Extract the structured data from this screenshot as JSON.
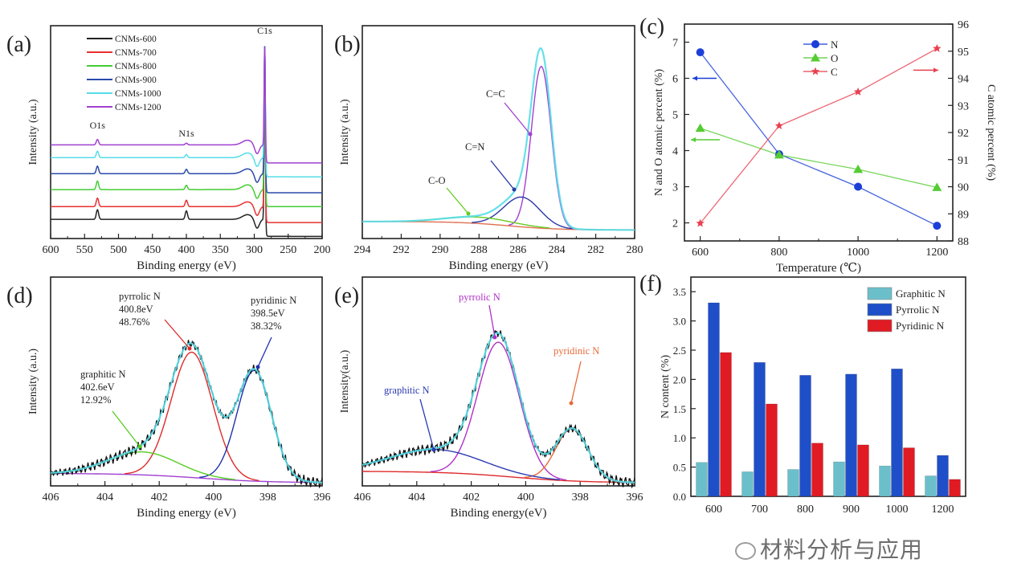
{
  "chart_data": [
    {
      "panel": "(a)",
      "type": "line",
      "xlabel": "Binding energy (eV)",
      "ylabel": "Intensity (a.u.)",
      "xlim": [
        600,
        200
      ],
      "ylim": [
        0,
        100
      ],
      "xticks": [
        600,
        550,
        500,
        450,
        400,
        350,
        300,
        250,
        200
      ],
      "legend": "top-left",
      "peak_labels": [
        {
          "text": "O1s",
          "x": 531
        },
        {
          "text": "N1s",
          "x": 400
        },
        {
          "text": "C1s",
          "x": 284.6
        }
      ],
      "series": [
        {
          "name": "CNMs-600",
          "color": "#222222",
          "level_before": 9,
          "level_after": 1,
          "peaks": [
            {
              "center": 531,
              "height": 4.5,
              "fwhm": 4
            },
            {
              "center": 400,
              "height": 4,
              "fwhm": 4
            },
            {
              "center": 284.6,
              "height": 82,
              "fwhm": 2
            }
          ]
        },
        {
          "name": "CNMs-700",
          "color": "#e83030",
          "level_before": 15,
          "level_after": 7.5,
          "peaks": [
            {
              "center": 531,
              "height": 4,
              "fwhm": 4
            },
            {
              "center": 400,
              "height": 3,
              "fwhm": 4
            },
            {
              "center": 284.6,
              "height": 76,
              "fwhm": 2
            }
          ]
        },
        {
          "name": "CNMs-800",
          "color": "#44cc33",
          "level_before": 23,
          "level_after": 15,
          "peaks": [
            {
              "center": 531,
              "height": 4,
              "fwhm": 4
            },
            {
              "center": 400,
              "height": 2,
              "fwhm": 4
            },
            {
              "center": 284.6,
              "height": 68,
              "fwhm": 2
            }
          ]
        },
        {
          "name": "CNMs-900",
          "color": "#2a4aaa",
          "level_before": 30.5,
          "level_after": 21.5,
          "peaks": [
            {
              "center": 531,
              "height": 3.5,
              "fwhm": 4
            },
            {
              "center": 400,
              "height": 2,
              "fwhm": 4
            },
            {
              "center": 284.6,
              "height": 61,
              "fwhm": 2
            }
          ]
        },
        {
          "name": "CNMs-1000",
          "color": "#55dde8",
          "level_before": 38,
          "level_after": 29,
          "peaks": [
            {
              "center": 531,
              "height": 3,
              "fwhm": 4
            },
            {
              "center": 400,
              "height": 1.5,
              "fwhm": 4
            },
            {
              "center": 284.6,
              "height": 53,
              "fwhm": 2
            }
          ]
        },
        {
          "name": "CNMs-1200",
          "color": "#a040d0",
          "level_before": 44,
          "level_after": 35.5,
          "peaks": [
            {
              "center": 531,
              "height": 2.5,
              "fwhm": 4
            },
            {
              "center": 400,
              "height": 0.8,
              "fwhm": 4
            },
            {
              "center": 284.6,
              "height": 47,
              "fwhm": 2
            }
          ]
        }
      ]
    },
    {
      "panel": "(b)",
      "type": "line",
      "xlabel": "Binding energy (eV)",
      "ylabel": "Intensity (a.u.)",
      "xlim": [
        294,
        280
      ],
      "ylim": [
        0,
        100
      ],
      "xticks": [
        294,
        292,
        290,
        288,
        286,
        284,
        282,
        280
      ],
      "background": {
        "color": "#e07050",
        "left": 8,
        "right": 4
      },
      "envelope_color": "#55dde8",
      "components": [
        {
          "name": "C=C",
          "color": "#a040d0",
          "center": 284.8,
          "height": 76,
          "fwhm": 1.2
        },
        {
          "name": "C=N",
          "color": "#2a3aa8",
          "center": 285.8,
          "height": 14,
          "fwhm": 2.2
        },
        {
          "name": "C-O",
          "color": "#66cc22",
          "center": 288.0,
          "height": 3,
          "fwhm": 4
        }
      ]
    },
    {
      "panel": "(c)",
      "type": "line",
      "xlabel": "Temperature (℃)",
      "ylabel": "N and O atomic percent (%)",
      "ylabel_right": "C atomic percent (%)",
      "x": [
        600,
        800,
        1000,
        1200
      ],
      "xlim": [
        560,
        1240
      ],
      "xticks": [
        600,
        800,
        1000,
        1200
      ],
      "ylim": [
        1.5,
        7.5
      ],
      "yticks": [
        2,
        3,
        4,
        5,
        6,
        7
      ],
      "ylim_right": [
        88,
        96
      ],
      "yticks_right": [
        88,
        89,
        90,
        91,
        92,
        93,
        94,
        95,
        96
      ],
      "legend": "top-center",
      "series": [
        {
          "name": "N",
          "axis": "left",
          "marker": "circle",
          "color": "#1c3fd8",
          "values": [
            6.72,
            3.9,
            3.0,
            1.92
          ]
        },
        {
          "name": "O",
          "axis": "left",
          "marker": "triangle",
          "color": "#55cc33",
          "values": [
            4.62,
            3.88,
            3.48,
            2.98
          ]
        },
        {
          "name": "C",
          "axis": "right",
          "marker": "star",
          "color": "#e8404f",
          "values": [
            88.65,
            92.25,
            93.5,
            95.1
          ]
        }
      ]
    },
    {
      "panel": "(d)",
      "type": "line",
      "xlabel": "Binding energy (eV)",
      "ylabel": "Intensity (a.u.)",
      "xlim": [
        406,
        396
      ],
      "ylim": [
        0,
        100
      ],
      "xticks": [
        406,
        404,
        402,
        400,
        398,
        396
      ],
      "background": {
        "color": "#a040d0",
        "left": 6,
        "right": 1.5
      },
      "envelope_color": "#55dde8",
      "raw_color": "#111111",
      "components": [
        {
          "name": "pyrrolic N",
          "energy": "400.8eV",
          "percent": "48.76%",
          "color": "#e02a2a",
          "center": 400.8,
          "height": 60,
          "fwhm": 1.8
        },
        {
          "name": "pyridinic N",
          "energy": "398.5eV",
          "percent": "38.32%",
          "color": "#2030b0",
          "center": 398.5,
          "height": 53,
          "fwhm": 1.5
        },
        {
          "name": "graphitic N",
          "energy": "402.6eV",
          "percent": "12.92%",
          "color": "#55cc22",
          "center": 402.6,
          "height": 11,
          "fwhm": 3
        }
      ]
    },
    {
      "panel": "(e)",
      "type": "line",
      "xlabel": "Binding energy(eV)",
      "ylabel": "Intensity(a.u.)",
      "xlim": [
        406,
        396
      ],
      "ylim": [
        0,
        100
      ],
      "xticks": [
        406,
        404,
        402,
        400,
        398,
        396
      ],
      "background": {
        "color": "#e02a2a",
        "left": 7,
        "right": 1.5
      },
      "envelope_color": "#55dde8",
      "raw_color": "#111111",
      "components": [
        {
          "name": "pyrrolic N",
          "color": "#b030c8",
          "center": 401.0,
          "height": 64,
          "fwhm": 1.8
        },
        {
          "name": "pyridinic N",
          "color": "#e86a3a",
          "center": 398.3,
          "height": 25,
          "fwhm": 1.4
        },
        {
          "name": "graphitic N",
          "color": "#2a3ab0",
          "center": 403.3,
          "height": 11,
          "fwhm": 4
        }
      ]
    },
    {
      "panel": "(f)",
      "type": "bar",
      "xlabel": "",
      "ylabel": "N content (%)",
      "categories": [
        "600",
        "700",
        "800",
        "900",
        "1000",
        "1200"
      ],
      "ylim": [
        0,
        3.75
      ],
      "yticks": [
        0.0,
        0.5,
        1.0,
        1.5,
        2.0,
        2.5,
        3.0,
        3.5
      ],
      "legend": "top-right",
      "series": [
        {
          "name": "Graphitic N",
          "color": "#6bbfca",
          "values": [
            0.58,
            0.42,
            0.46,
            0.59,
            0.52,
            0.35
          ]
        },
        {
          "name": "Pyrrolic N",
          "color": "#1f4fc8",
          "values": [
            3.31,
            2.29,
            2.07,
            2.09,
            2.18,
            0.7
          ]
        },
        {
          "name": "Pyridinic N",
          "color": "#e01b24",
          "values": [
            2.46,
            1.58,
            0.91,
            0.88,
            0.83,
            0.29
          ]
        }
      ]
    }
  ],
  "watermark": "材料分析与应用"
}
